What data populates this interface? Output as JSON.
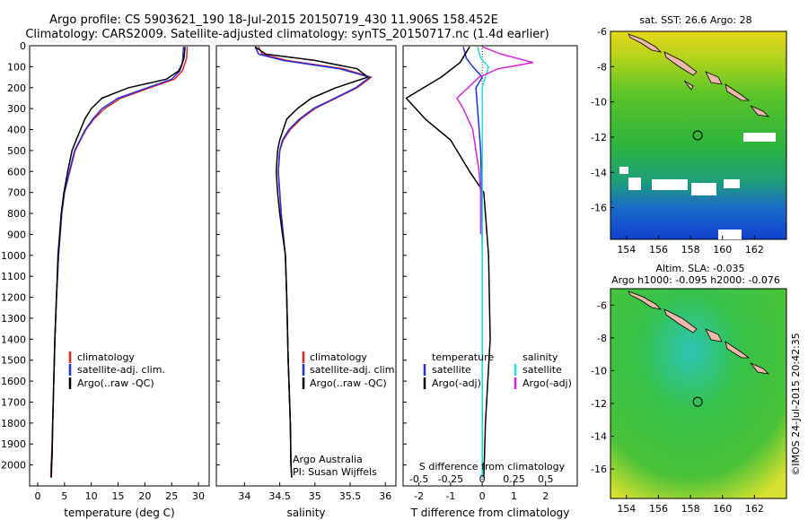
{
  "header": {
    "title_line1": "Argo profile: CS 5903621_190 18-Jul-2015 20150719_430 11.906S 158.452E",
    "title_line2": "Climatology: CARS2009. Satellite-adjusted climatology: synTS_20150717.nc (1.4d earlier)"
  },
  "colors": {
    "climatology": "#e8201e",
    "satellite": "#1f2fe0",
    "argo": "#000000",
    "sat_salinity": "#22e0e8",
    "argo_adj_salinity": "#e020e0"
  },
  "chart_data": [
    {
      "type": "line",
      "name": "temperature-profile",
      "xlabel": "temperature (deg C)",
      "ylabel": "",
      "xlim": [
        -1.5,
        32
      ],
      "ylim": [
        2100,
        0
      ],
      "xticks": [
        "0",
        "5",
        "10",
        "15",
        "20",
        "25",
        "30"
      ],
      "xtick_values": [
        0,
        5,
        10,
        15,
        20,
        25,
        30
      ],
      "yticks": [
        "0",
        "100",
        "200",
        "300",
        "400",
        "500",
        "600",
        "700",
        "800",
        "900",
        "1000",
        "1100",
        "1200",
        "1300",
        "1400",
        "1500",
        "1600",
        "1700",
        "1800",
        "1900",
        "2000"
      ],
      "ytick_values": [
        0,
        100,
        200,
        300,
        400,
        500,
        600,
        700,
        800,
        900,
        1000,
        1100,
        1200,
        1300,
        1400,
        1500,
        1600,
        1700,
        1800,
        1900,
        2000
      ],
      "legend": [
        "climatology",
        "satellite-adj. clim.",
        "Argo(..raw -QC)"
      ],
      "legend_position": "lower-left",
      "series": [
        {
          "name": "climatology",
          "color_key": "climatology",
          "x": [
            27.9,
            27.8,
            27.4,
            27.0,
            25.5,
            21.0,
            15.5,
            12.5,
            10.5,
            9.0,
            8.0,
            7.0,
            6.0,
            5.0,
            4.5,
            4.2,
            3.9,
            3.5,
            3.2,
            3.0,
            2.8,
            2.6,
            2.5,
            2.45
          ],
          "y": [
            5,
            60,
            90,
            120,
            160,
            200,
            250,
            300,
            350,
            400,
            450,
            500,
            600,
            700,
            800,
            900,
            1000,
            1200,
            1400,
            1600,
            1800,
            1950,
            2000,
            2060
          ]
        },
        {
          "name": "satellite-adj. clim.",
          "color_key": "satellite",
          "x": [
            27.2,
            27.1,
            26.9,
            26.5,
            25.0,
            20.5,
            15.0,
            12.0,
            10.3,
            8.9,
            7.9,
            6.9,
            5.9,
            5.0,
            4.5,
            4.2,
            3.9,
            3.5,
            3.2,
            3.0,
            2.8,
            2.7,
            2.6,
            2.55
          ],
          "y": [
            5,
            60,
            90,
            120,
            160,
            200,
            250,
            300,
            350,
            400,
            450,
            500,
            600,
            700,
            800,
            900,
            1000,
            1200,
            1400,
            1600,
            1800,
            1950,
            2000,
            2060
          ]
        },
        {
          "name": "Argo(..raw -QC)",
          "color_key": "argo",
          "x": [
            27.5,
            27.3,
            26.9,
            26.3,
            24.0,
            17.0,
            12.0,
            10.0,
            8.8,
            8.0,
            7.2,
            6.4,
            5.6,
            4.9,
            4.4,
            4.1,
            3.8,
            3.5,
            3.2,
            3.0,
            2.8,
            2.7,
            2.6,
            2.55
          ],
          "y": [
            5,
            60,
            90,
            120,
            160,
            200,
            250,
            300,
            350,
            400,
            450,
            500,
            600,
            700,
            800,
            900,
            1000,
            1200,
            1400,
            1600,
            1800,
            1950,
            2000,
            2060
          ]
        }
      ]
    },
    {
      "type": "line",
      "name": "salinity-profile",
      "xlabel": "salinity",
      "xlim": [
        33.6,
        36.15
      ],
      "ylim": [
        2100,
        0
      ],
      "xticks": [
        "34",
        "34.5",
        "35",
        "35.5",
        "36"
      ],
      "xtick_values": [
        34,
        34.5,
        35,
        35.5,
        36
      ],
      "legend": [
        "climatology",
        "satellite-adj. clim.",
        "Argo(..raw -QC)"
      ],
      "legend_position": "lower-right",
      "annotation": [
        "Argo Australia",
        "PI: Susan Wijffels"
      ],
      "series": [
        {
          "name": "climatology",
          "color_key": "climatology",
          "x": [
            34.2,
            34.25,
            34.6,
            35.4,
            35.8,
            35.6,
            35.3,
            35.0,
            34.8,
            34.65,
            34.55,
            34.5,
            34.48,
            34.5,
            34.52,
            34.55,
            34.58,
            34.6,
            34.62,
            34.65,
            34.66,
            34.67
          ],
          "y": [
            5,
            40,
            70,
            110,
            150,
            200,
            250,
            300,
            350,
            400,
            450,
            500,
            600,
            700,
            800,
            900,
            1000,
            1200,
            1500,
            1800,
            2000,
            2060
          ]
        },
        {
          "name": "satellite-adj. clim.",
          "color_key": "satellite",
          "x": [
            34.15,
            34.2,
            34.55,
            35.35,
            35.78,
            35.58,
            35.28,
            34.98,
            34.78,
            34.63,
            34.54,
            34.5,
            34.48,
            34.5,
            34.52,
            34.55,
            34.58,
            34.6,
            34.62,
            34.65,
            34.66,
            34.67
          ],
          "y": [
            5,
            40,
            70,
            110,
            150,
            200,
            250,
            300,
            350,
            400,
            450,
            500,
            600,
            700,
            800,
            900,
            1000,
            1200,
            1500,
            1800,
            2000,
            2060
          ]
        },
        {
          "name": "Argo(..raw -QC)",
          "color_key": "argo",
          "x": [
            34.15,
            34.3,
            35.0,
            35.6,
            35.75,
            35.3,
            34.95,
            34.75,
            34.6,
            34.55,
            34.5,
            34.47,
            34.45,
            34.47,
            34.5,
            34.54,
            34.58,
            34.6,
            34.62,
            34.65,
            34.66,
            34.67
          ],
          "y": [
            5,
            40,
            70,
            110,
            150,
            200,
            250,
            300,
            350,
            400,
            450,
            500,
            600,
            700,
            800,
            900,
            1000,
            1200,
            1500,
            1800,
            2000,
            2060
          ]
        }
      ]
    },
    {
      "type": "line",
      "name": "difference-profile",
      "xlabel": "T difference from climatology",
      "xlabel_top": "S difference from climatology",
      "xlim": [
        -2.5,
        3
      ],
      "ylim": [
        2100,
        0
      ],
      "xticks": [
        "-2",
        "-1",
        "0",
        "1",
        "2"
      ],
      "xtick_values": [
        -2,
        -1,
        0,
        1,
        2
      ],
      "xticks_s": [
        "-0.5",
        "-0.25",
        "0",
        "0.25",
        "0.5"
      ],
      "legend_left_title": "temperature",
      "legend_right_title": "salinity",
      "legend": [
        "satellite",
        "Argo(-adj)",
        "satellite",
        "Argo(-adj)"
      ],
      "legend_position": "lower-center",
      "series": [
        {
          "name": "temperature satellite",
          "color_key": "satellite",
          "x": [
            -0.6,
            -0.5,
            -0.3,
            0.0,
            -0.2,
            -0.15,
            -0.1,
            -0.05,
            -0.02,
            0.0,
            0.0,
            0.0,
            0.0
          ],
          "y": [
            5,
            60,
            100,
            150,
            200,
            300,
            400,
            500,
            700,
            1000,
            1500,
            2000,
            2060
          ]
        },
        {
          "name": "temperature Argo(-adj)",
          "color_key": "argo",
          "x": [
            -0.4,
            -0.7,
            -1.3,
            -2.4,
            -2.1,
            -1.8,
            -1.4,
            -1.0,
            -0.4,
            0.05,
            0.2,
            0.25,
            0.1,
            0.05
          ],
          "y": [
            5,
            80,
            150,
            250,
            300,
            350,
            400,
            450,
            600,
            700,
            1000,
            1400,
            1800,
            2060
          ]
        },
        {
          "name": "salinity satellite",
          "color_key": "sat_salinity",
          "x": [
            -0.15,
            -0.05,
            0.2,
            0.1,
            0.0,
            0.0,
            0.0,
            0.0,
            0.0
          ],
          "y": [
            5,
            60,
            100,
            150,
            200,
            300,
            500,
            1000,
            2060
          ]
        },
        {
          "name": "salinity Argo(-adj)",
          "color_key": "argo_adj_salinity",
          "x": [
            0.0,
            0.6,
            1.6,
            0.5,
            -0.1,
            -0.8,
            -0.6,
            -0.3,
            -0.1,
            -0.05,
            -0.05
          ],
          "y": [
            5,
            40,
            80,
            110,
            150,
            250,
            300,
            400,
            600,
            700,
            900
          ]
        }
      ]
    },
    {
      "type": "heatmap",
      "name": "sst-map",
      "title": "sat. SST: 26.6  Argo: 28",
      "xlim": [
        153,
        164
      ],
      "ylim": [
        -17.8,
        -6
      ],
      "xticks": [
        "154",
        "156",
        "158",
        "160",
        "162"
      ],
      "xtick_values": [
        154,
        156,
        158,
        160,
        162
      ],
      "yticks": [
        "-6",
        "-8",
        "-10",
        "-12",
        "-14",
        "-16"
      ],
      "ytick_values": [
        -6,
        -8,
        -10,
        -12,
        -14,
        -16
      ],
      "marker": {
        "lon": 158.45,
        "lat": -11.9
      }
    },
    {
      "type": "heatmap",
      "name": "sla-map",
      "title_line1": "Altim. SLA: -0.035",
      "title_line2": "Argo h1000: -0.095 h2000: -0.076",
      "xlim": [
        153,
        164
      ],
      "ylim": [
        -17.8,
        -5
      ],
      "xticks": [
        "154",
        "156",
        "158",
        "160",
        "162"
      ],
      "xtick_values": [
        154,
        156,
        158,
        160,
        162
      ],
      "yticks": [
        "-6",
        "-8",
        "-10",
        "-12",
        "-14",
        "-16"
      ],
      "ytick_values": [
        -6,
        -8,
        -10,
        -12,
        -14,
        -16
      ],
      "marker": {
        "lon": 158.45,
        "lat": -11.9
      }
    }
  ],
  "footer": {
    "credit": "©IMOS 24-Jul-2015 20:42:35"
  }
}
